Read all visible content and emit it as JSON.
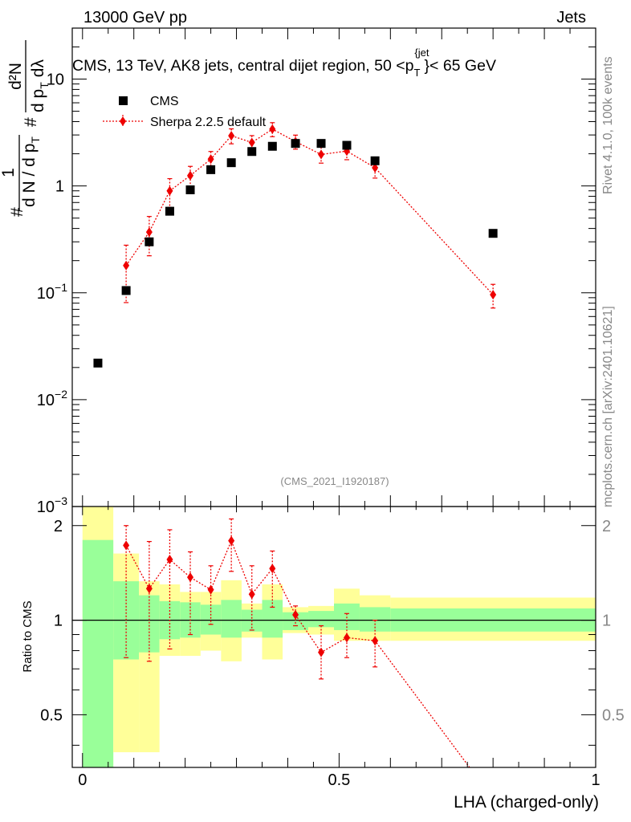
{
  "header": {
    "left": "13000 GeV pp",
    "right": "Jets"
  },
  "side": {
    "rivet": "Rivet 4.1.0,  100k events",
    "mcplots": "mcplots.cern.ch [arXiv:2401.10621]"
  },
  "chart_data": [
    {
      "type": "scatter",
      "title": "CMS, 13 TeV, AK8 jets, central dijet region, 50 <p_T^{jet}< 65 GeV",
      "title_parts": {
        "main": "CMS, 13 TeV, AK8 jets, central dijet region, 50 <p",
        "sub": "T",
        "sup": "{jet",
        "tail": "}< 65 GeV"
      },
      "ylabel": "1/dN/dpT  d2N/dpT dλ",
      "ylabel_parts": {
        "hash": "#",
        "one": "1",
        "dn": "d N / d p",
        "t": "T",
        "d2n": "d²N",
        "dp": "d p",
        "dl": "dλ",
        "t2": "T",
        "hash2": "#"
      },
      "yscale": "log",
      "ylim": [
        0.001,
        30
      ],
      "xlim": [
        -0.02,
        1.0
      ],
      "yticks": [
        {
          "v": 10,
          "base": "10",
          "exp": ""
        },
        {
          "v": 1,
          "base": "1",
          "exp": ""
        },
        {
          "v": 0.1,
          "base": "10",
          "exp": "−1"
        },
        {
          "v": 0.01,
          "base": "10",
          "exp": "−2"
        },
        {
          "v": 0.001,
          "base": "10",
          "exp": "−3"
        }
      ],
      "annotation": "(CMS_2021_I1920187)",
      "legend": {
        "position": "top-left",
        "entries": [
          "CMS",
          "Sherpa 2.2.5 default"
        ]
      },
      "series": [
        {
          "name": "CMS",
          "marker": "square",
          "color": "#000000",
          "x": [
            0.03,
            0.085,
            0.13,
            0.17,
            0.21,
            0.25,
            0.29,
            0.33,
            0.37,
            0.415,
            0.465,
            0.515,
            0.57,
            0.8
          ],
          "y": [
            0.022,
            0.105,
            0.3,
            0.58,
            0.92,
            1.42,
            1.65,
            2.1,
            2.35,
            2.5,
            2.5,
            2.4,
            1.72,
            0.36
          ]
        },
        {
          "name": "Sherpa 2.2.5 default",
          "marker": "diamond",
          "color": "#ee0000",
          "style": "dotted",
          "x": [
            0.085,
            0.13,
            0.17,
            0.21,
            0.25,
            0.29,
            0.33,
            0.37,
            0.415,
            0.465,
            0.515,
            0.57,
            0.8
          ],
          "y": [
            0.18,
            0.37,
            0.9,
            1.25,
            1.78,
            2.95,
            2.55,
            3.4,
            2.6,
            1.97,
            2.12,
            1.48,
            0.096
          ],
          "err": [
            0.55,
            0.4,
            0.3,
            0.22,
            0.18,
            0.16,
            0.16,
            0.15,
            0.15,
            0.17,
            0.17,
            0.2,
            0.25
          ]
        }
      ]
    },
    {
      "type": "ratio",
      "ylabel": "Ratio to CMS",
      "yscale": "log",
      "ylim": [
        0.34,
        2.3
      ],
      "xlim": [
        -0.02,
        1.0
      ],
      "xlabel": "LHA (charged-only)",
      "xticks": [
        {
          "v": 0,
          "label": "0"
        },
        {
          "v": 0.5,
          "label": "0.5"
        },
        {
          "v": 1,
          "label": "1"
        }
      ],
      "yticks": [
        {
          "v": 2,
          "label": "2"
        },
        {
          "v": 1,
          "label": "1"
        },
        {
          "v": 0.5,
          "label": "0.5"
        }
      ],
      "bands": [
        {
          "x0": 0.0,
          "x1": 0.06,
          "g": [
            0.34,
            1.8
          ],
          "y": [
            0.34,
            2.3
          ]
        },
        {
          "x0": 0.06,
          "x1": 0.11,
          "g": [
            0.75,
            1.33
          ],
          "y": [
            0.38,
            1.63
          ]
        },
        {
          "x0": 0.11,
          "x1": 0.15,
          "g": [
            0.79,
            1.2
          ],
          "y": [
            0.38,
            1.33
          ]
        },
        {
          "x0": 0.15,
          "x1": 0.19,
          "g": [
            0.87,
            1.15
          ],
          "y": [
            0.77,
            1.3
          ]
        },
        {
          "x0": 0.19,
          "x1": 0.23,
          "g": [
            0.88,
            1.14
          ],
          "y": [
            0.77,
            1.23
          ]
        },
        {
          "x0": 0.23,
          "x1": 0.27,
          "g": [
            0.9,
            1.12
          ],
          "y": [
            0.8,
            1.23
          ]
        },
        {
          "x0": 0.27,
          "x1": 0.31,
          "g": [
            0.88,
            1.16
          ],
          "y": [
            0.74,
            1.34
          ]
        },
        {
          "x0": 0.31,
          "x1": 0.35,
          "g": [
            0.92,
            1.08
          ],
          "y": [
            0.88,
            1.13
          ]
        },
        {
          "x0": 0.35,
          "x1": 0.39,
          "g": [
            0.88,
            1.16
          ],
          "y": [
            0.75,
            1.3
          ]
        },
        {
          "x0": 0.39,
          "x1": 0.44,
          "g": [
            0.93,
            1.06
          ],
          "y": [
            0.91,
            1.1
          ]
        },
        {
          "x0": 0.44,
          "x1": 0.49,
          "g": [
            0.95,
            1.07
          ],
          "y": [
            0.9,
            1.11
          ]
        },
        {
          "x0": 0.49,
          "x1": 0.54,
          "g": [
            0.93,
            1.13
          ],
          "y": [
            0.86,
            1.26
          ]
        },
        {
          "x0": 0.54,
          "x1": 0.6,
          "g": [
            0.92,
            1.1
          ],
          "y": [
            0.86,
            1.2
          ]
        },
        {
          "x0": 0.6,
          "x1": 1.0,
          "g": [
            0.92,
            1.09
          ],
          "y": [
            0.86,
            1.18
          ]
        }
      ],
      "band_colors": {
        "green": "#99ff99",
        "yellow": "#ffff99"
      },
      "series": [
        {
          "name": "Sherpa 2.2.5 default",
          "color": "#ee0000",
          "x": [
            0.085,
            0.13,
            0.17,
            0.21,
            0.25,
            0.29,
            0.33,
            0.37,
            0.415,
            0.465,
            0.515,
            0.57
          ],
          "y": [
            1.73,
            1.26,
            1.56,
            1.37,
            1.25,
            1.79,
            1.21,
            1.46,
            1.04,
            0.79,
            0.88,
            0.86
          ],
          "lo": [
            0.76,
            0.74,
            0.81,
            0.9,
            0.97,
            1.43,
            0.93,
            1.1,
            0.96,
            0.65,
            0.76,
            0.71
          ],
          "hi": [
            2.0,
            1.78,
            1.94,
            1.65,
            1.49,
            2.1,
            1.49,
            1.66,
            1.11,
            0.96,
            1.05,
            1.0
          ],
          "tail_to": {
            "x": 0.8,
            "y": 0.27
          }
        }
      ]
    }
  ]
}
